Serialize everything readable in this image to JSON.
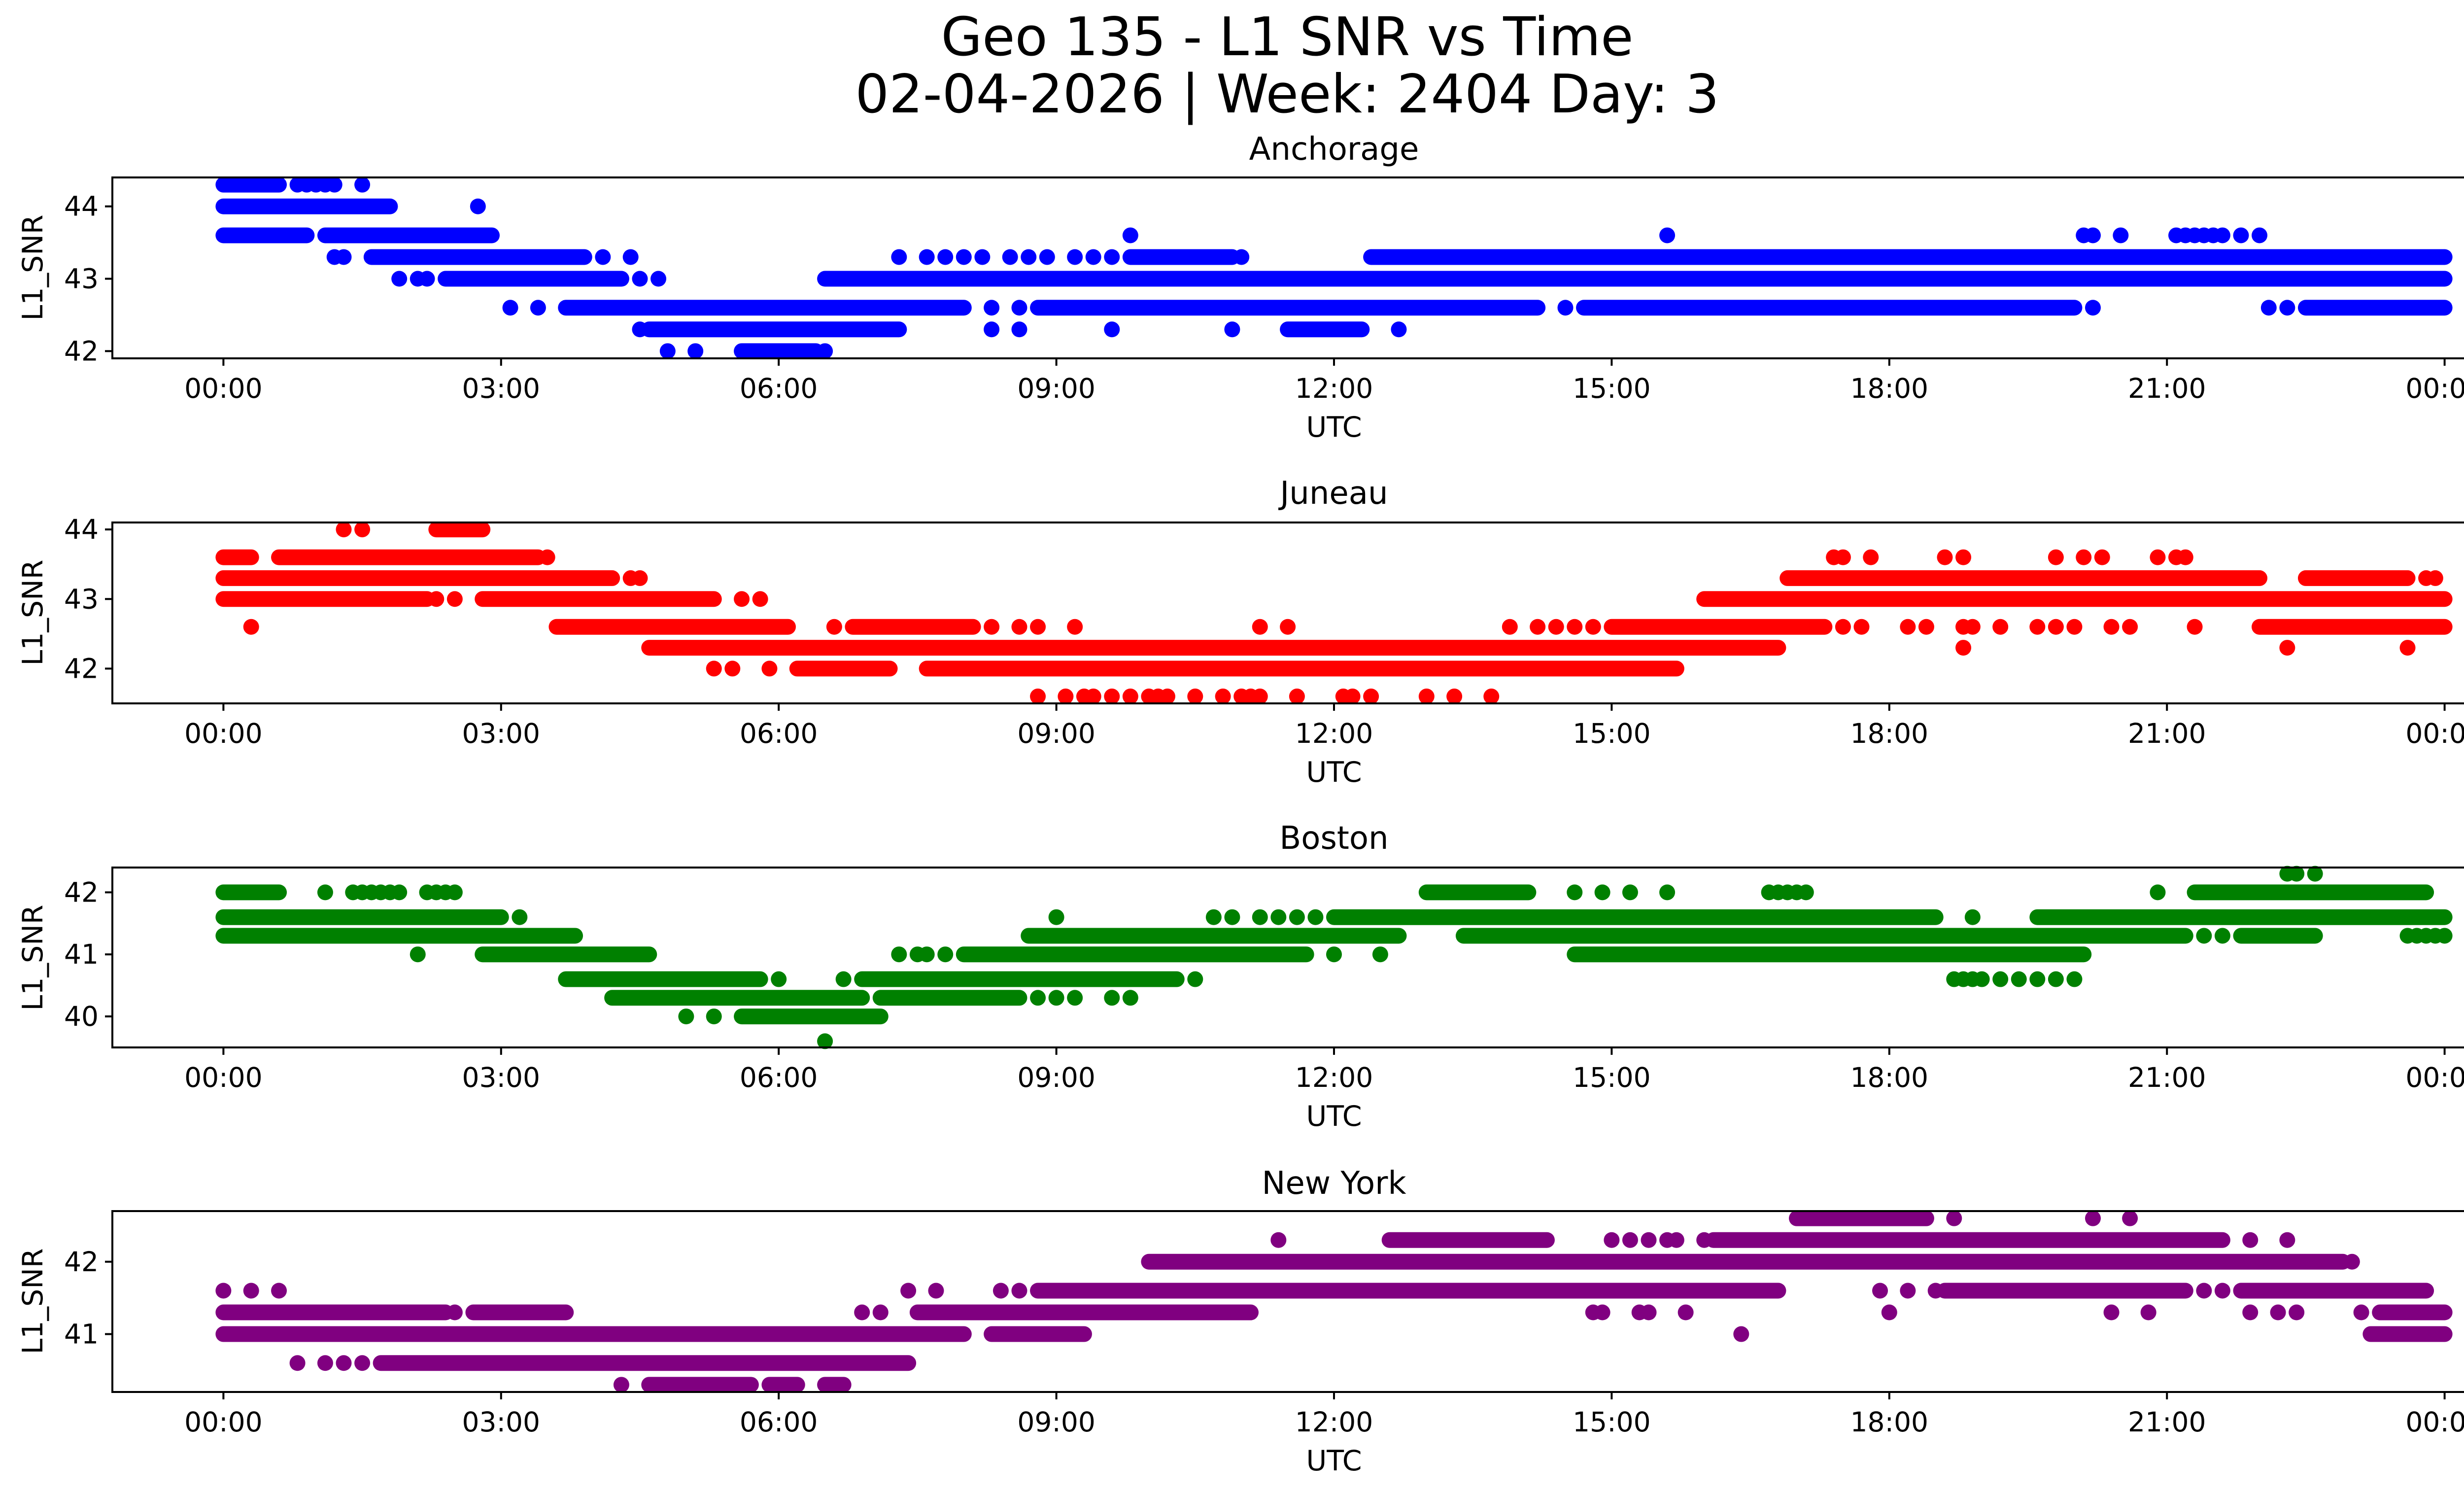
{
  "figure": {
    "title_line1": "Geo 135 - L1 SNR vs Time",
    "title_line2": "02-04-2026 | Week: 2404 Day: 3"
  },
  "chart_data": [
    {
      "type": "scatter",
      "title": "Anchorage",
      "xlabel": "UTC",
      "ylabel": "L1_SNR",
      "color": "#0000ff",
      "xlim_hours": [
        -1.2,
        25.2
      ],
      "ylim": [
        41.9,
        44.4
      ],
      "xticks": [
        0,
        3,
        6,
        9,
        12,
        15,
        18,
        21,
        24
      ],
      "xtick_labels": [
        "00:00",
        "03:00",
        "06:00",
        "09:00",
        "12:00",
        "15:00",
        "18:00",
        "21:00",
        "00:00"
      ],
      "yticks": [
        42,
        43,
        44
      ],
      "ytick_labels": [
        "42",
        "43",
        "44"
      ],
      "series": [
        {
          "level": 44.3,
          "segments": [
            [
              0,
              0.6
            ]
          ],
          "points": [
            0.8,
            0.9,
            1.0,
            1.1,
            1.2,
            1.5
          ]
        },
        {
          "level": 44.0,
          "segments": [
            [
              0,
              1.8
            ]
          ],
          "points": [
            2.75
          ]
        },
        {
          "level": 43.6,
          "segments": [
            [
              0,
              0.9
            ],
            [
              1.1,
              2.9
            ]
          ],
          "points": [
            9.8,
            15.6,
            20.1,
            20.2,
            20.5,
            21.1,
            21.2,
            21.3,
            21.4,
            21.5,
            21.6,
            21.8,
            22.0
          ]
        },
        {
          "level": 43.3,
          "segments": [
            [
              1.6,
              3.9
            ],
            [
              9.8,
              10.9
            ],
            [
              12.4,
              24.0
            ]
          ],
          "points": [
            1.2,
            1.3,
            4.1,
            4.4,
            7.3,
            7.6,
            7.8,
            8.0,
            8.2,
            8.5,
            8.7,
            8.9,
            9.2,
            9.4,
            9.6,
            11.0
          ]
        },
        {
          "level": 43.0,
          "segments": [
            [
              2.4,
              4.3
            ],
            [
              6.5,
              24.0
            ]
          ],
          "points": [
            1.9,
            2.1,
            2.2,
            4.5,
            4.7
          ]
        },
        {
          "level": 42.6,
          "segments": [
            [
              3.7,
              8.0
            ],
            [
              8.8,
              14.2
            ],
            [
              14.7,
              20.0
            ],
            [
              22.5,
              24.0
            ]
          ],
          "points": [
            3.1,
            3.4,
            8.3,
            8.6,
            14.5,
            20.2,
            22.1,
            22.3
          ]
        },
        {
          "level": 42.3,
          "segments": [
            [
              4.6,
              7.3
            ],
            [
              11.5,
              12.3
            ]
          ],
          "points": [
            4.5,
            8.3,
            8.6,
            9.6,
            10.9,
            12.7
          ]
        },
        {
          "level": 42.0,
          "segments": [
            [
              5.6,
              6.4
            ]
          ],
          "points": [
            4.8,
            5.1,
            6.5
          ]
        }
      ]
    },
    {
      "type": "scatter",
      "title": "Juneau",
      "xlabel": "UTC",
      "ylabel": "L1_SNR",
      "color": "#ff0000",
      "xlim_hours": [
        -1.2,
        25.2
      ],
      "ylim": [
        41.5,
        44.1
      ],
      "xticks": [
        0,
        3,
        6,
        9,
        12,
        15,
        18,
        21,
        24
      ],
      "xtick_labels": [
        "00:00",
        "03:00",
        "06:00",
        "09:00",
        "12:00",
        "15:00",
        "18:00",
        "21:00",
        "00:00"
      ],
      "yticks": [
        42,
        43,
        44
      ],
      "ytick_labels": [
        "42",
        "43",
        "44"
      ],
      "series": [
        {
          "level": 44.0,
          "segments": [
            [
              2.3,
              2.8
            ]
          ],
          "points": [
            1.3,
            1.5
          ]
        },
        {
          "level": 43.6,
          "segments": [
            [
              0,
              0.3
            ],
            [
              0.6,
              3.4
            ]
          ],
          "points": [
            3.5,
            17.4,
            17.5,
            17.8,
            18.6,
            18.8,
            19.8,
            20.1,
            20.3,
            20.9,
            21.1,
            21.2
          ]
        },
        {
          "level": 43.3,
          "segments": [
            [
              0,
              4.2
            ],
            [
              16.9,
              22.0
            ],
            [
              22.5,
              23.6
            ]
          ],
          "points": [
            4.4,
            4.5,
            23.8,
            23.9
          ]
        },
        {
          "level": 43.0,
          "segments": [
            [
              0,
              2.2
            ],
            [
              2.8,
              5.3
            ],
            [
              16.0,
              24.0
            ]
          ],
          "points": [
            2.3,
            2.5,
            5.6,
            5.8
          ]
        },
        {
          "level": 42.6,
          "segments": [
            [
              3.6,
              6.1
            ],
            [
              6.8,
              8.1
            ],
            [
              15.0,
              17.3
            ],
            [
              22.0,
              24.0
            ]
          ],
          "points": [
            0.3,
            6.6,
            8.3,
            8.6,
            8.8,
            9.2,
            11.2,
            11.5,
            13.9,
            14.2,
            14.4,
            14.6,
            14.8,
            17.5,
            17.7,
            18.2,
            18.4,
            18.8,
            18.9,
            19.2,
            19.6,
            19.8,
            20.0,
            20.4,
            20.6,
            21.3
          ]
        },
        {
          "level": 42.3,
          "segments": [
            [
              4.6,
              16.8
            ]
          ],
          "points": [
            18.8,
            22.3,
            23.6
          ]
        },
        {
          "level": 42.0,
          "segments": [
            [
              6.2,
              7.2
            ],
            [
              7.6,
              15.7
            ]
          ],
          "points": [
            5.3,
            5.5,
            5.9
          ]
        },
        {
          "level": 41.6,
          "segments": [],
          "points": [
            8.8,
            9.1,
            9.3,
            9.4,
            9.6,
            9.8,
            10.0,
            10.1,
            10.2,
            10.5,
            10.8,
            11.0,
            11.1,
            11.2,
            11.6,
            12.1,
            12.2,
            12.4,
            13.0,
            13.3,
            13.7
          ]
        }
      ]
    },
    {
      "type": "scatter",
      "title": "Boston",
      "xlabel": "UTC",
      "ylabel": "L1_SNR",
      "color": "#008000",
      "xlim_hours": [
        -1.2,
        25.2
      ],
      "ylim": [
        39.5,
        42.4
      ],
      "xticks": [
        0,
        3,
        6,
        9,
        12,
        15,
        18,
        21,
        24
      ],
      "xtick_labels": [
        "00:00",
        "03:00",
        "06:00",
        "09:00",
        "12:00",
        "15:00",
        "18:00",
        "21:00",
        "00:00"
      ],
      "yticks": [
        40,
        41,
        42
      ],
      "ytick_labels": [
        "40",
        "41",
        "42"
      ],
      "series": [
        {
          "level": 42.3,
          "segments": [],
          "points": [
            22.3,
            22.4,
            22.6
          ]
        },
        {
          "level": 42.0,
          "segments": [
            [
              0,
              0.6
            ],
            [
              13.0,
              14.1
            ],
            [
              21.3,
              23.8
            ]
          ],
          "points": [
            1.1,
            1.4,
            1.5,
            1.6,
            1.7,
            1.8,
            1.9,
            2.2,
            2.3,
            2.4,
            2.5,
            14.6,
            14.9,
            15.2,
            15.6,
            16.7,
            16.8,
            16.9,
            17.0,
            17.1,
            20.9
          ]
        },
        {
          "level": 41.6,
          "segments": [
            [
              0,
              3.0
            ],
            [
              12.0,
              18.5
            ],
            [
              19.6,
              24.0
            ]
          ],
          "points": [
            3.2,
            9.0,
            10.7,
            10.9,
            11.2,
            11.4,
            11.6,
            11.8,
            18.9
          ]
        },
        {
          "level": 41.3,
          "segments": [
            [
              0,
              3.8
            ],
            [
              8.7,
              12.7
            ],
            [
              13.4,
              21.2
            ],
            [
              21.8,
              22.6
            ]
          ],
          "points": [
            21.4,
            21.6,
            22.0,
            22.1,
            23.6,
            23.7,
            23.8,
            23.9,
            24.0
          ]
        },
        {
          "level": 41.0,
          "segments": [
            [
              2.8,
              4.6
            ],
            [
              8.0,
              11.7
            ],
            [
              14.6,
              20.1
            ]
          ],
          "points": [
            2.1,
            7.3,
            7.5,
            7.6,
            7.8,
            12.0,
            12.5
          ]
        },
        {
          "level": 40.6,
          "segments": [
            [
              3.7,
              5.8
            ],
            [
              6.9,
              10.3
            ]
          ],
          "points": [
            6.0,
            6.7,
            10.5,
            18.7,
            18.8,
            18.9,
            19.0,
            19.2,
            19.4,
            19.6,
            19.8,
            20.0
          ]
        },
        {
          "level": 40.3,
          "segments": [
            [
              4.2,
              6.9
            ],
            [
              7.1,
              8.6
            ]
          ],
          "points": [
            8.8,
            9.0,
            9.2,
            9.6,
            9.8
          ]
        },
        {
          "level": 40.0,
          "segments": [
            [
              5.6,
              7.1
            ]
          ],
          "points": [
            5.0,
            5.3
          ]
        },
        {
          "level": 39.6,
          "segments": [],
          "points": [
            6.5
          ]
        }
      ]
    },
    {
      "type": "scatter",
      "title": "New York",
      "xlabel": "UTC",
      "ylabel": "L1_SNR",
      "color": "#800080",
      "xlim_hours": [
        -1.2,
        25.2
      ],
      "ylim": [
        40.2,
        42.7
      ],
      "xticks": [
        0,
        3,
        6,
        9,
        12,
        15,
        18,
        21,
        24
      ],
      "xtick_labels": [
        "00:00",
        "03:00",
        "06:00",
        "09:00",
        "12:00",
        "15:00",
        "18:00",
        "21:00",
        "00:00"
      ],
      "yticks": [
        41,
        42
      ],
      "ytick_labels": [
        "41",
        "42"
      ],
      "series": [
        {
          "level": 42.6,
          "segments": [
            [
              17.0,
              18.4
            ]
          ],
          "points": [
            18.7,
            20.2,
            20.6
          ]
        },
        {
          "level": 42.3,
          "segments": [
            [
              12.6,
              14.3
            ],
            [
              16.1,
              21.6
            ]
          ],
          "points": [
            11.4,
            15.0,
            15.2,
            15.4,
            15.6,
            15.7,
            16.0,
            21.9,
            22.3
          ]
        },
        {
          "level": 42.0,
          "segments": [
            [
              10.0,
              22.9
            ]
          ],
          "points": [
            23.0
          ]
        },
        {
          "level": 41.6,
          "segments": [
            [
              8.8,
              16.8
            ],
            [
              18.6,
              21.2
            ],
            [
              21.8,
              23.8
            ]
          ],
          "points": [
            0.0,
            0.3,
            0.6,
            7.4,
            7.7,
            8.4,
            8.6,
            17.9,
            18.2,
            18.5,
            21.4,
            21.6
          ]
        },
        {
          "level": 41.3,
          "segments": [
            [
              0,
              2.4
            ],
            [
              2.7,
              3.7
            ],
            [
              7.5,
              11.1
            ],
            [
              23.3,
              24.0
            ]
          ],
          "points": [
            2.5,
            6.9,
            7.1,
            10.4,
            10.6,
            10.8,
            11.0,
            14.8,
            14.9,
            15.3,
            15.4,
            15.8,
            18.0,
            20.4,
            20.8,
            21.9,
            22.2,
            22.4,
            23.1
          ]
        },
        {
          "level": 41.0,
          "segments": [
            [
              0,
              8.0
            ],
            [
              8.3,
              9.3
            ],
            [
              23.2,
              24.0
            ]
          ],
          "points": [
            16.4
          ]
        },
        {
          "level": 40.6,
          "segments": [
            [
              1.7,
              7.4
            ]
          ],
          "points": [
            0.8,
            1.1,
            1.3,
            1.5
          ]
        },
        {
          "level": 40.3,
          "segments": [
            [
              4.6,
              5.7
            ],
            [
              5.9,
              6.2
            ],
            [
              6.5,
              6.7
            ]
          ],
          "points": [
            4.3
          ]
        }
      ]
    }
  ]
}
